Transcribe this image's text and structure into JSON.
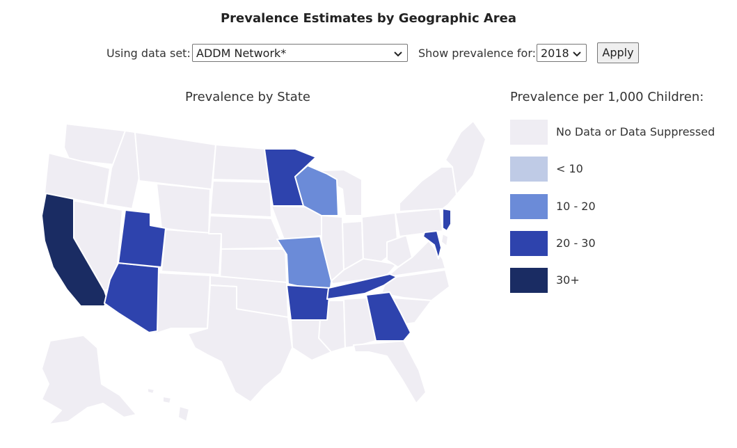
{
  "page": {
    "title": "Prevalence Estimates by Geographic Area"
  },
  "controls": {
    "dataset_label": "Using data set:",
    "dataset_value": "ADDM Network*",
    "year_label": "Show prevalence for:",
    "year_value": "2018",
    "apply_label": "Apply"
  },
  "map": {
    "title": "Prevalence by State",
    "states": [
      {
        "name": "California",
        "category": "30+"
      },
      {
        "name": "Arizona",
        "category": "20 - 30"
      },
      {
        "name": "Utah",
        "category": "20 - 30"
      },
      {
        "name": "Minnesota",
        "category": "20 - 30"
      },
      {
        "name": "Wisconsin",
        "category": "10 - 20"
      },
      {
        "name": "Missouri",
        "category": "10 - 20"
      },
      {
        "name": "Arkansas",
        "category": "20 - 30"
      },
      {
        "name": "Tennessee",
        "category": "20 - 30"
      },
      {
        "name": "Georgia",
        "category": "20 - 30"
      },
      {
        "name": "Maryland",
        "category": "20 - 30"
      },
      {
        "name": "New Jersey",
        "category": "20 - 30"
      }
    ]
  },
  "legend": {
    "title": "Prevalence per 1,000 Children:",
    "items": [
      {
        "label": "No Data or Data Suppressed",
        "color": "#efedf3"
      },
      {
        "label": "< 10",
        "color": "#bfcbe6"
      },
      {
        "label": "10 - 20",
        "color": "#6b8bd8"
      },
      {
        "label": "20 - 30",
        "color": "#2e43ad"
      },
      {
        "label": "30+",
        "color": "#1a2c63"
      }
    ]
  },
  "colors": {
    "no_data": "#efedf3",
    "c10_20": "#6b8bd8",
    "c20_30": "#2e43ad",
    "c30": "#1a2c63"
  }
}
